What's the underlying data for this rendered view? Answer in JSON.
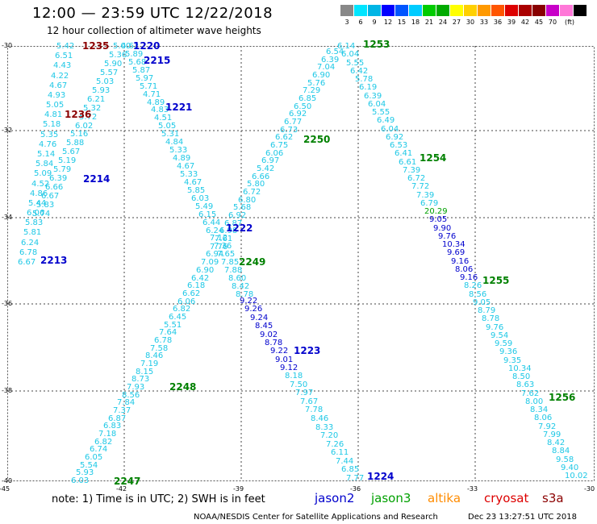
{
  "title": "12:00 — 23:59 UTC 12/22/2018",
  "subtitle": "12 hour collection of altimeter wave heights",
  "legend": {
    "unit": "(ft)",
    "colors": [
      "#888888",
      "#00e5ff",
      "#00b5e5",
      "#0000ff",
      "#0055ff",
      "#00ccff",
      "#00cc00",
      "#00aa00",
      "#ffff00",
      "#ffd000",
      "#ff9900",
      "#ff5500",
      "#dd0000",
      "#aa0000",
      "#880000",
      "#c800c8",
      "#ff78d8",
      "#000000"
    ],
    "labels": [
      "3",
      "6",
      "9",
      "12",
      "15",
      "18",
      "21",
      "24",
      "27",
      "30",
      "33",
      "36",
      "39",
      "42",
      "45",
      "70"
    ]
  },
  "axes": {
    "lat_labels": [
      "-30",
      "-32",
      "-34",
      "-36",
      "-38",
      "-40"
    ],
    "lon_labels": [
      "-45",
      "-42",
      "-39",
      "-36",
      "-33",
      "-30"
    ]
  },
  "passes": [
    {
      "label": "1235",
      "color": "#8b0000"
    },
    {
      "label": "1220",
      "color": "#0000cc"
    },
    {
      "label": "2215",
      "color": "#0000cc"
    },
    {
      "label": "1221",
      "color": "#0000cc"
    },
    {
      "label": "1236",
      "color": "#8b0000"
    },
    {
      "label": "2214",
      "color": "#0000cc"
    },
    {
      "label": "2213",
      "color": "#0000cc"
    },
    {
      "label": "1222",
      "color": "#0000cc"
    },
    {
      "label": "2249",
      "color": "#008000"
    },
    {
      "label": "1223",
      "color": "#0000cc"
    },
    {
      "label": "2248",
      "color": "#008000"
    },
    {
      "label": "2247",
      "color": "#008000"
    },
    {
      "label": "1224",
      "color": "#0000cc"
    },
    {
      "label": "1253",
      "color": "#008000"
    },
    {
      "label": "2250",
      "color": "#008000"
    },
    {
      "label": "1254",
      "color": "#008000"
    },
    {
      "label": "1255",
      "color": "#008000"
    },
    {
      "label": "1256",
      "color": "#008000"
    }
  ],
  "tracks": [
    {
      "name": "track-2213-2214-2215",
      "color": "#1ec8e6",
      "values": [
        "5.42",
        "6.51",
        "4.43",
        "4.22",
        "4.67",
        "4.93",
        "5.05",
        "4.81",
        "5.18",
        "5.35",
        "4.76",
        "5.14",
        "5.84",
        "5.09",
        "4.52",
        "4.86",
        "5.44",
        "6.06",
        "5.83",
        "5.81",
        "6.24",
        "6.78",
        "6.67"
      ]
    },
    {
      "name": "track-1235-1236",
      "color": "#1ec8e6",
      "values": [
        "5.00",
        "5.36",
        "5.90",
        "5.57",
        "5.03",
        "5.93",
        "6.21",
        "5.32",
        "5.72",
        "6.02",
        "5.16",
        "5.88",
        "5.67",
        "5.19",
        "5.79",
        "6.39",
        "6.66",
        "6.67",
        "5.83",
        "5.74"
      ]
    },
    {
      "name": "track-1220-1221-1222-1223-1224",
      "color": "#1ec8e6",
      "values": [
        "4.62",
        "5.89",
        "5.68",
        "5.87",
        "5.97",
        "5.71",
        "4.71",
        "4.89",
        "4.83",
        "4.51",
        "5.05",
        "5.31",
        "4.84",
        "5.33",
        "4.89",
        "4.67",
        "5.33",
        "4.67",
        "5.85",
        "6.03",
        "5.49",
        "6.15",
        "6.44",
        "6.24",
        "7.12",
        "7.36",
        "7.65",
        "7.85",
        "7.88",
        "8.60",
        "8.42",
        "8.78"
      ]
    },
    {
      "name": "track-1222-1223-1224-blue",
      "color": "#0000cd",
      "values": [
        "9.22",
        "9.26",
        "9.24",
        "8.45",
        "9.02",
        "8.78",
        "9.22",
        "9.01",
        "9.12"
      ]
    },
    {
      "name": "track-1223-1224-lower",
      "color": "#1ec8e6",
      "values": [
        "8.18",
        "7.50",
        "7.97",
        "7.67",
        "7.78",
        "8.46",
        "8.33",
        "7.20",
        "7.26",
        "6.11",
        "7.44",
        "6.85",
        "7.77"
      ]
    },
    {
      "name": "track-2247-2248-2249-2250",
      "color": "#1ec8e6",
      "values": [
        "6.03",
        "5.93",
        "5.54",
        "6.05",
        "6.74",
        "6.82",
        "7.18",
        "6.83",
        "6.87",
        "7.37",
        "7.84",
        "8.56",
        "7.93",
        "8.73",
        "8.15",
        "7.19",
        "8.46",
        "7.58",
        "6.78",
        "7.64",
        "5.51",
        "6.45",
        "6.82",
        "6.06",
        "6.62",
        "6.18",
        "6.42",
        "6.90",
        "7.09",
        "6.94",
        "7.76",
        "7.61",
        "6.98",
        "6.87",
        "6.92",
        "5.68",
        "6.80",
        "6.72",
        "5.80",
        "6.66",
        "5.42",
        "6.97",
        "6.06",
        "6.75",
        "6.62",
        "6.73",
        "6.77",
        "6.92",
        "6.50",
        "6.85",
        "7.29",
        "5.76",
        "6.90",
        "7.04",
        "6.39",
        "6.54"
      ]
    },
    {
      "name": "track-1253-1254-1255-1256",
      "color": "#1ec8e6",
      "values": [
        "6.14",
        "6.04",
        "5.55",
        "6.42",
        "5.78",
        "6.19",
        "6.39",
        "6.04",
        "5.55",
        "6.49",
        "6.04",
        "6.92",
        "6.53",
        "6.41",
        "6.61",
        "7.39",
        "6.72",
        "7.72",
        "7.39",
        "6.79",
        "20.29",
        "9.05",
        "9.90",
        "9.76",
        "10.34",
        "9.69",
        "9.16",
        "8.06",
        "9.16",
        "8.26",
        "8.56",
        "9.05",
        "8.79",
        "8.78",
        "9.76",
        "9.54",
        "9.59",
        "9.36",
        "9.35",
        "10.34",
        "8.50",
        "8.63",
        "7.62",
        "8.00",
        "8.34",
        "8.06",
        "7.92",
        "7.99",
        "8.42",
        "8.84",
        "9.58",
        "9.40",
        "10.02"
      ]
    }
  ],
  "notes": {
    "text": "note:  1) Time is in UTC; 2) SWH is in feet",
    "satellites": [
      {
        "name": "jason2",
        "color": "#0000cc"
      },
      {
        "name": "jason3",
        "color": "#00a000"
      },
      {
        "name": "altika",
        "color": "#ff8c00"
      },
      {
        "name": "cryosat",
        "color": "#dd0000"
      },
      {
        "name": "s3a",
        "color": "#8b0000"
      }
    ],
    "footer": "NOAA/NESDIS Center for Satellite Applications and Research",
    "timestamp": "Dec 23 13:27:51 UTC 2018"
  }
}
